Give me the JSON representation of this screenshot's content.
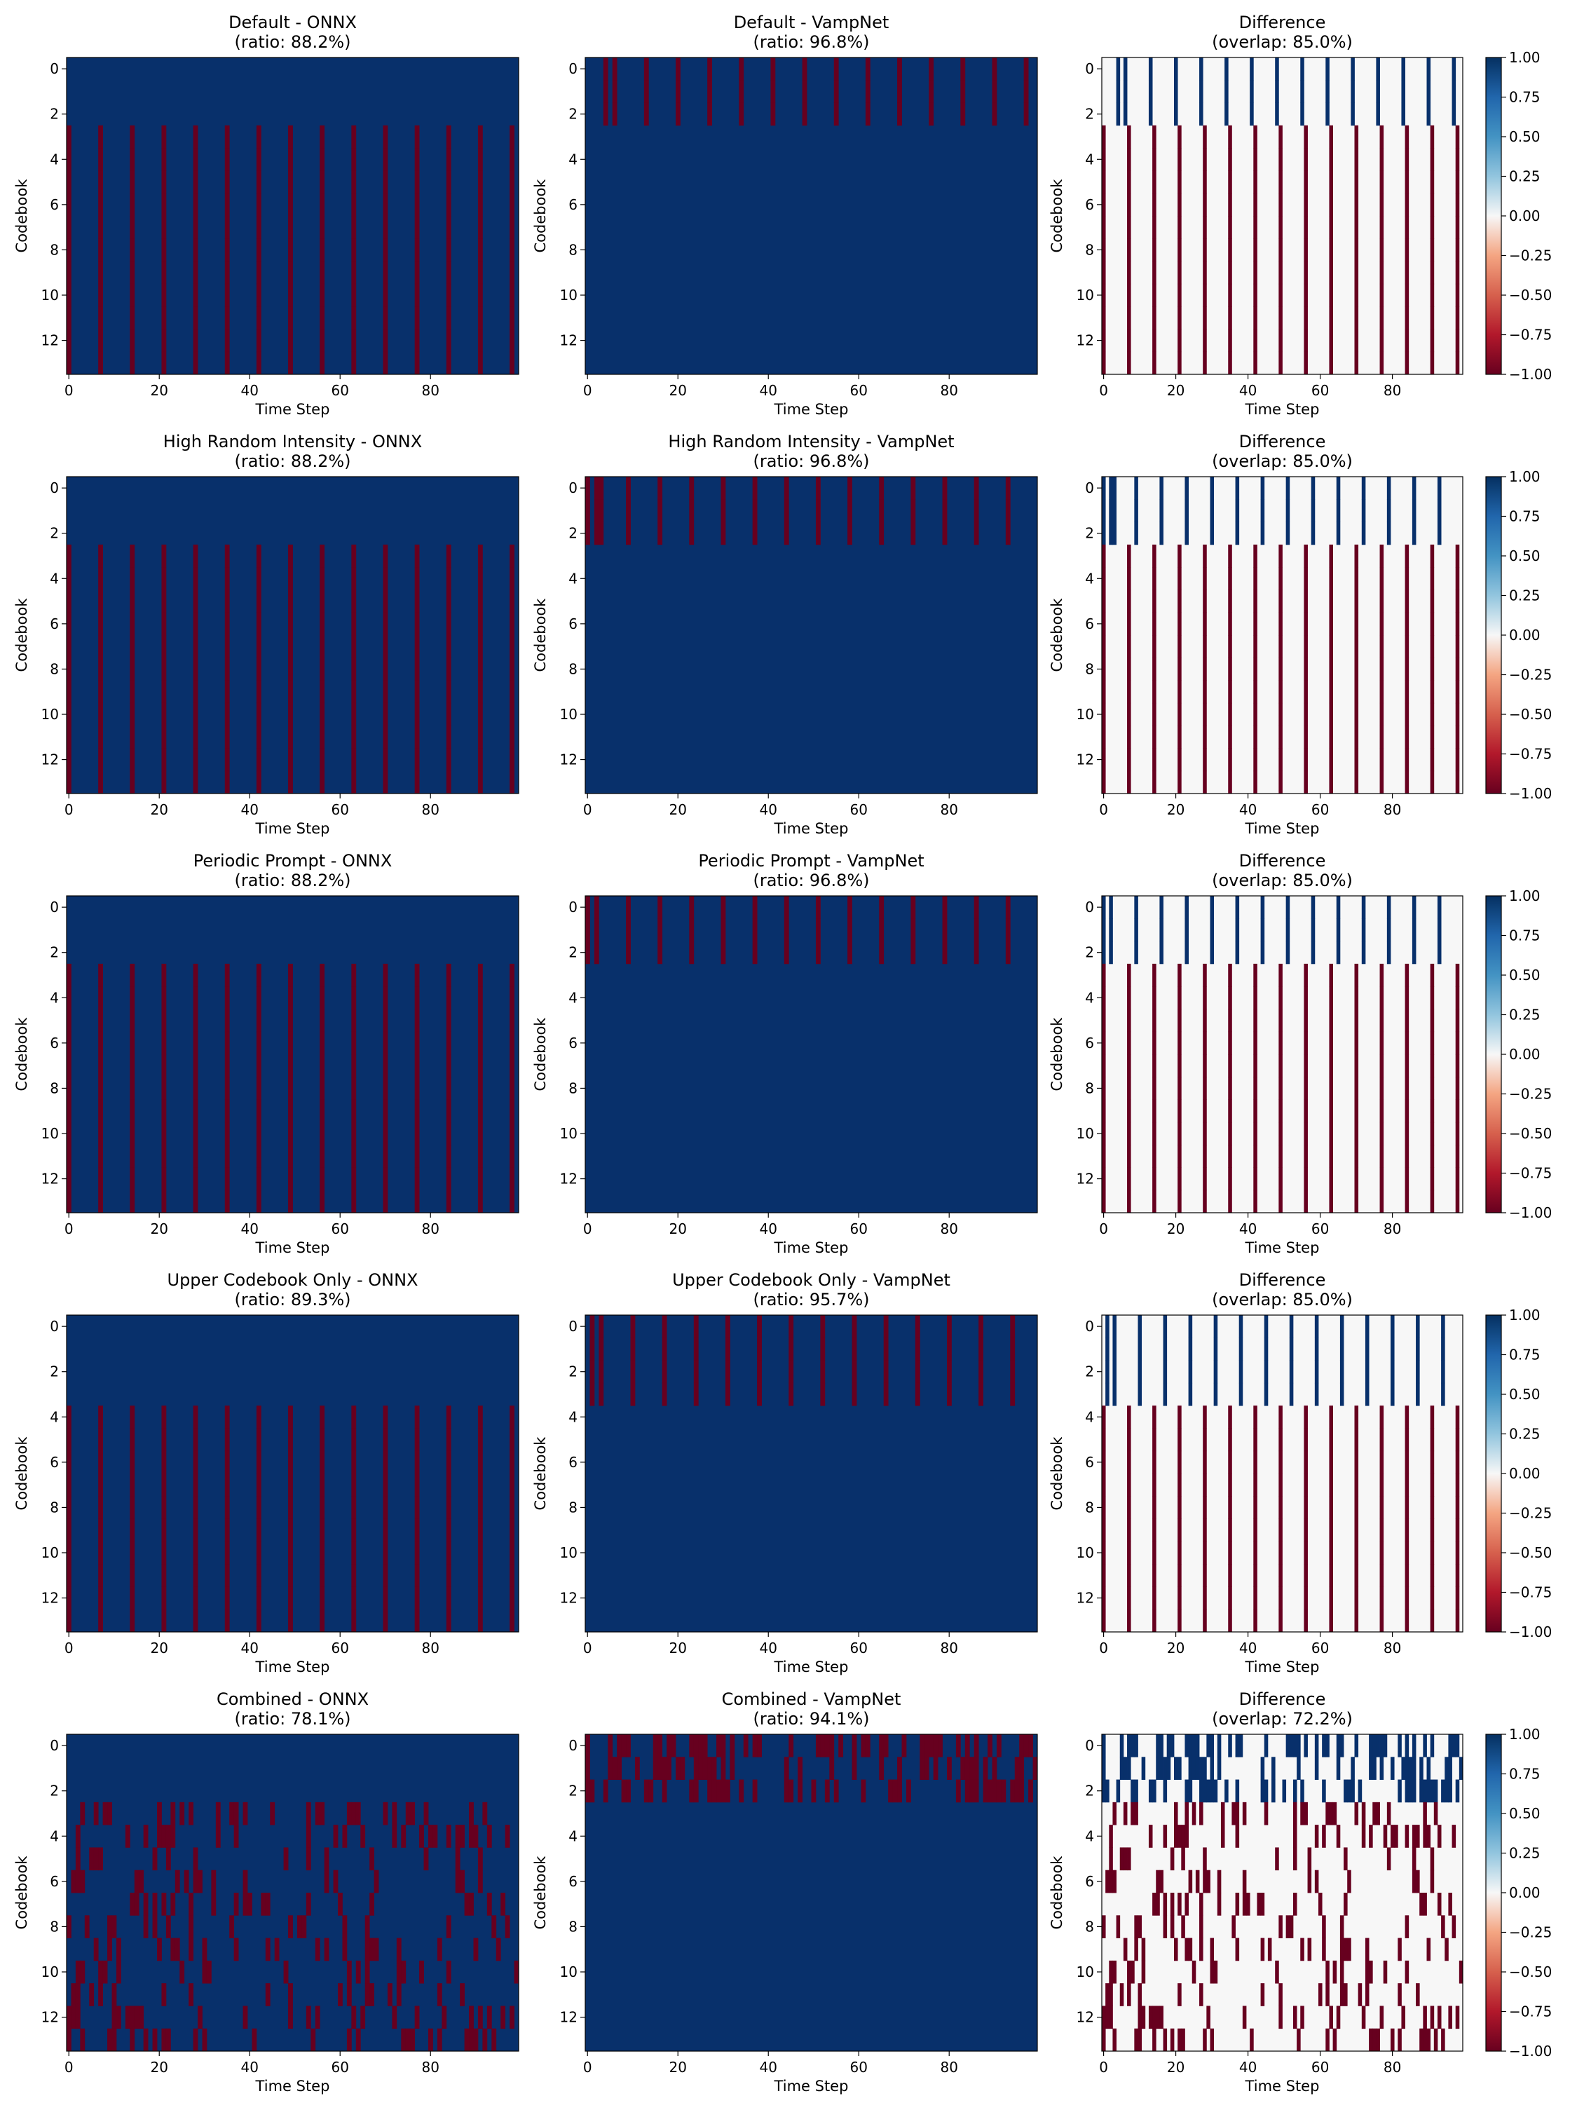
{
  "colors": {
    "blue": "#08306b",
    "red": "#67001f",
    "white": "#f7f7f7"
  },
  "chart_data": [
    {
      "type": "heatmap",
      "title": "Default - ONNX",
      "subtitle": "(ratio: 88.2%)",
      "xlabel": "Time Step",
      "ylabel": "Codebook",
      "xlim": [
        0,
        100
      ],
      "ylim": [
        0,
        14
      ],
      "xticks": [
        0,
        20,
        40,
        60,
        80
      ],
      "yticks": [
        0,
        2,
        4,
        6,
        8,
        10,
        12
      ],
      "pattern": {
        "kind": "periodic",
        "rows": [
          3,
          13
        ],
        "columns": [
          0,
          7,
          14,
          21,
          28,
          35,
          42,
          49,
          56,
          63,
          70,
          77,
          84,
          91,
          98
        ],
        "masked_value": 0,
        "base_value": 1
      }
    },
    {
      "type": "heatmap",
      "title": "Default - VampNet",
      "subtitle": "(ratio: 96.8%)",
      "xlabel": "Time Step",
      "ylabel": "Codebook",
      "xlim": [
        0,
        100
      ],
      "ylim": [
        0,
        14
      ],
      "xticks": [
        0,
        20,
        40,
        60,
        80
      ],
      "yticks": [
        0,
        2,
        4,
        6,
        8,
        10,
        12
      ],
      "pattern": {
        "kind": "periodic",
        "rows": [
          0,
          2
        ],
        "columns": [
          4,
          6,
          13,
          20,
          27,
          34,
          41,
          48,
          55,
          62,
          69,
          76,
          83,
          90,
          97
        ],
        "masked_value": 0,
        "base_value": 1
      }
    },
    {
      "type": "heatmap",
      "title": "Difference",
      "subtitle": "(overlap: 85.0%)",
      "xlabel": "Time Step",
      "ylabel": "Codebook",
      "xlim": [
        0,
        100
      ],
      "ylim": [
        0,
        14
      ],
      "xticks": [
        0,
        20,
        40,
        60,
        80
      ],
      "yticks": [
        0,
        2,
        4,
        6,
        8,
        10,
        12
      ],
      "colorbar": {
        "ticks": [
          "1.00",
          "0.75",
          "0.50",
          "0.25",
          "0.00",
          "−0.25",
          "−0.50",
          "−0.75",
          "−1.00"
        ],
        "range": [
          -1,
          1
        ]
      }
    },
    {
      "type": "heatmap",
      "title": "High Random Intensity - ONNX",
      "subtitle": "(ratio: 88.2%)",
      "xlabel": "Time Step",
      "ylabel": "Codebook",
      "xlim": [
        0,
        100
      ],
      "ylim": [
        0,
        14
      ],
      "xticks": [
        0,
        20,
        40,
        60,
        80
      ],
      "yticks": [
        0,
        2,
        4,
        6,
        8,
        10,
        12
      ],
      "pattern": {
        "kind": "periodic",
        "rows": [
          3,
          13
        ],
        "columns": [
          0,
          7,
          14,
          21,
          28,
          35,
          42,
          49,
          56,
          63,
          70,
          77,
          84,
          91,
          98
        ],
        "masked_value": 0,
        "base_value": 1
      }
    },
    {
      "type": "heatmap",
      "title": "High Random Intensity - VampNet",
      "subtitle": "(ratio: 96.8%)",
      "xlabel": "Time Step",
      "ylabel": "Codebook",
      "xlim": [
        0,
        100
      ],
      "ylim": [
        0,
        14
      ],
      "xticks": [
        0,
        20,
        40,
        60,
        80
      ],
      "yticks": [
        0,
        2,
        4,
        6,
        8,
        10,
        12
      ],
      "pattern": {
        "kind": "periodic",
        "rows": [
          0,
          2
        ],
        "columns": [
          0,
          2,
          3,
          9,
          16,
          23,
          30,
          37,
          44,
          51,
          58,
          65,
          72,
          79,
          86,
          93
        ],
        "masked_value": 0,
        "base_value": 1
      }
    },
    {
      "type": "heatmap",
      "title": "Difference",
      "subtitle": "(overlap: 85.0%)",
      "xlabel": "Time Step",
      "ylabel": "Codebook",
      "xlim": [
        0,
        100
      ],
      "ylim": [
        0,
        14
      ],
      "xticks": [
        0,
        20,
        40,
        60,
        80
      ],
      "yticks": [
        0,
        2,
        4,
        6,
        8,
        10,
        12
      ],
      "colorbar": {
        "ticks": [
          "1.00",
          "0.75",
          "0.50",
          "0.25",
          "0.00",
          "−0.25",
          "−0.50",
          "−0.75",
          "−1.00"
        ],
        "range": [
          -1,
          1
        ]
      }
    },
    {
      "type": "heatmap",
      "title": "Periodic Prompt - ONNX",
      "subtitle": "(ratio: 88.2%)",
      "xlabel": "Time Step",
      "ylabel": "Codebook",
      "xlim": [
        0,
        100
      ],
      "ylim": [
        0,
        14
      ],
      "xticks": [
        0,
        20,
        40,
        60,
        80
      ],
      "yticks": [
        0,
        2,
        4,
        6,
        8,
        10,
        12
      ],
      "pattern": {
        "kind": "periodic",
        "rows": [
          3,
          13
        ],
        "columns": [
          0,
          7,
          14,
          21,
          28,
          35,
          42,
          49,
          56,
          63,
          70,
          77,
          84,
          91,
          98
        ],
        "masked_value": 0,
        "base_value": 1
      }
    },
    {
      "type": "heatmap",
      "title": "Periodic Prompt - VampNet",
      "subtitle": "(ratio: 96.8%)",
      "xlabel": "Time Step",
      "ylabel": "Codebook",
      "xlim": [
        0,
        100
      ],
      "ylim": [
        0,
        14
      ],
      "xticks": [
        0,
        20,
        40,
        60,
        80
      ],
      "yticks": [
        0,
        2,
        4,
        6,
        8,
        10,
        12
      ],
      "pattern": {
        "kind": "periodic",
        "rows": [
          0,
          2
        ],
        "columns": [
          0,
          2,
          9,
          16,
          23,
          30,
          37,
          44,
          51,
          58,
          65,
          72,
          79,
          86,
          93
        ],
        "masked_value": 0,
        "base_value": 1
      }
    },
    {
      "type": "heatmap",
      "title": "Difference",
      "subtitle": "(overlap: 85.0%)",
      "xlabel": "Time Step",
      "ylabel": "Codebook",
      "xlim": [
        0,
        100
      ],
      "ylim": [
        0,
        14
      ],
      "xticks": [
        0,
        20,
        40,
        60,
        80
      ],
      "yticks": [
        0,
        2,
        4,
        6,
        8,
        10,
        12
      ],
      "colorbar": {
        "ticks": [
          "1.00",
          "0.75",
          "0.50",
          "0.25",
          "0.00",
          "−0.25",
          "−0.50",
          "−0.75",
          "−1.00"
        ],
        "range": [
          -1,
          1
        ]
      }
    },
    {
      "type": "heatmap",
      "title": "Upper Codebook Only - ONNX",
      "subtitle": "(ratio: 89.3%)",
      "xlabel": "Time Step",
      "ylabel": "Codebook",
      "xlim": [
        0,
        100
      ],
      "ylim": [
        0,
        14
      ],
      "xticks": [
        0,
        20,
        40,
        60,
        80
      ],
      "yticks": [
        0,
        2,
        4,
        6,
        8,
        10,
        12
      ],
      "pattern": {
        "kind": "periodic",
        "rows": [
          4,
          13
        ],
        "columns": [
          0,
          7,
          14,
          21,
          28,
          35,
          42,
          49,
          56,
          63,
          70,
          77,
          84,
          91,
          98
        ],
        "masked_value": 0,
        "base_value": 1
      }
    },
    {
      "type": "heatmap",
      "title": "Upper Codebook Only - VampNet",
      "subtitle": "(ratio: 95.7%)",
      "xlabel": "Time Step",
      "ylabel": "Codebook",
      "xlim": [
        0,
        100
      ],
      "ylim": [
        0,
        14
      ],
      "xticks": [
        0,
        20,
        40,
        60,
        80
      ],
      "yticks": [
        0,
        2,
        4,
        6,
        8,
        10,
        12
      ],
      "pattern": {
        "kind": "periodic",
        "rows": [
          0,
          3
        ],
        "columns": [
          1,
          3,
          10,
          17,
          24,
          31,
          38,
          45,
          52,
          59,
          66,
          73,
          80,
          87,
          94
        ],
        "masked_value": 0,
        "base_value": 1
      }
    },
    {
      "type": "heatmap",
      "title": "Difference",
      "subtitle": "(overlap: 85.0%)",
      "xlabel": "Time Step",
      "ylabel": "Codebook",
      "xlim": [
        0,
        100
      ],
      "ylim": [
        0,
        14
      ],
      "xticks": [
        0,
        20,
        40,
        60,
        80
      ],
      "yticks": [
        0,
        2,
        4,
        6,
        8,
        10,
        12
      ],
      "colorbar": {
        "ticks": [
          "1.00",
          "0.75",
          "0.50",
          "0.25",
          "0.00",
          "−0.25",
          "−0.50",
          "−0.75",
          "−1.00"
        ],
        "range": [
          -1,
          1
        ]
      }
    },
    {
      "type": "heatmap",
      "title": "Combined - ONNX",
      "subtitle": "(ratio: 78.1%)",
      "xlabel": "Time Step",
      "ylabel": "Codebook",
      "xlim": [
        0,
        100
      ],
      "ylim": [
        0,
        14
      ],
      "xticks": [
        0,
        20,
        40,
        60,
        80
      ],
      "yticks": [
        0,
        2,
        4,
        6,
        8,
        10,
        12
      ],
      "pattern": {
        "kind": "random",
        "rows": [
          3,
          13
        ],
        "probability": 0.22,
        "seed": 11,
        "masked_value": 0,
        "base_value": 1
      }
    },
    {
      "type": "heatmap",
      "title": "Combined - VampNet",
      "subtitle": "(ratio: 94.1%)",
      "xlabel": "Time Step",
      "ylabel": "Codebook",
      "xlim": [
        0,
        100
      ],
      "ylim": [
        0,
        14
      ],
      "xticks": [
        0,
        20,
        40,
        60,
        80
      ],
      "yticks": [
        0,
        2,
        4,
        6,
        8,
        10,
        12
      ],
      "pattern": {
        "kind": "random",
        "rows": [
          0,
          2
        ],
        "probability": 0.45,
        "seed": 29,
        "masked_value": 0,
        "base_value": 1
      }
    },
    {
      "type": "heatmap",
      "title": "Difference",
      "subtitle": "(overlap: 72.2%)",
      "xlabel": "Time Step",
      "ylabel": "Codebook",
      "xlim": [
        0,
        100
      ],
      "ylim": [
        0,
        14
      ],
      "xticks": [
        0,
        20,
        40,
        60,
        80
      ],
      "yticks": [
        0,
        2,
        4,
        6,
        8,
        10,
        12
      ],
      "colorbar": {
        "ticks": [
          "1.00",
          "0.75",
          "0.50",
          "0.25",
          "0.00",
          "−0.25",
          "−0.50",
          "−0.75",
          "−1.00"
        ],
        "range": [
          -1,
          1
        ]
      }
    }
  ]
}
